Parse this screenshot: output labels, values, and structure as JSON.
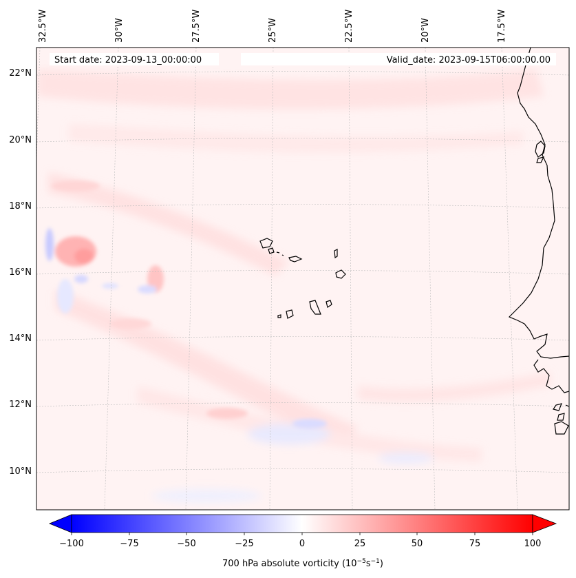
{
  "map": {
    "start_date": "Start date: 2023-09-13_00:00:00",
    "valid_date": "Valid_date: 2023-09-15T06:00:00.00",
    "lon_labels": [
      "32.5°W",
      "30°W",
      "27.5°W",
      "25°W",
      "22.5°W",
      "20°W",
      "17.5°W"
    ],
    "lat_labels": [
      "22°N",
      "20°N",
      "18°N",
      "16°N",
      "14°N",
      "12°N",
      "10°N"
    ]
  },
  "colorbar": {
    "ticks": [
      "−100",
      "−75",
      "−50",
      "−25",
      "0",
      "25",
      "50",
      "75",
      "100"
    ],
    "label": "700 hPa absolute vorticity (10",
    "label_exp1": "−5",
    "label_mid": "s",
    "label_exp2": "−1",
    "label_end": ")",
    "min_color": "#0000ff",
    "mid_color": "#ffffff",
    "max_color": "#ff0000"
  }
}
